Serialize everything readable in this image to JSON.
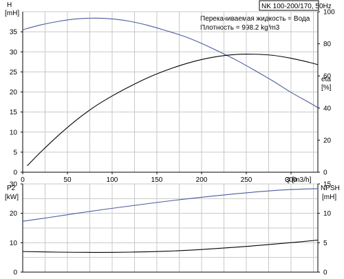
{
  "colors": {
    "background": "#ffffff",
    "grid": "#c8c8c8",
    "axis": "#000000",
    "head_curve": "#4a5aa0",
    "eta_curve": "#000000",
    "p2_curve": "#4a5aa0",
    "npsh_curve": "#000000"
  },
  "header": {
    "model": "NK 100-200/170, 50Hz",
    "fluid_line": "Перекачиваемая жидкость = Вода",
    "density_line": "Плотность = 998.2 kg/m3"
  },
  "chart_data": [
    {
      "type": "line",
      "x_axis": {
        "label": "Q [m3/h]",
        "range": [
          0,
          330
        ],
        "ticks": [
          0,
          50,
          100,
          150,
          200,
          250,
          300
        ]
      },
      "y_left": {
        "label_top": "H",
        "label_unit": "[mH]",
        "range": [
          0,
          40
        ],
        "ticks": [
          0,
          5,
          10,
          15,
          20,
          25,
          30,
          35
        ]
      },
      "y_right": {
        "label_top": "eta",
        "label_unit": "[%]",
        "range": [
          0,
          100
        ],
        "ticks": [
          0,
          20,
          40,
          60,
          80,
          100
        ]
      },
      "grid": true,
      "series": [
        {
          "key": "head",
          "axis": "left",
          "points": [
            [
              0,
              35.5
            ],
            [
              20,
              36.7
            ],
            [
              40,
              37.6
            ],
            [
              60,
              38.2
            ],
            [
              80,
              38.4
            ],
            [
              100,
              38.2
            ],
            [
              120,
              37.6
            ],
            [
              140,
              36.6
            ],
            [
              160,
              35.3
            ],
            [
              180,
              33.9
            ],
            [
              200,
              32.1
            ],
            [
              220,
              30.0
            ],
            [
              240,
              27.8
            ],
            [
              260,
              25.3
            ],
            [
              280,
              22.7
            ],
            [
              300,
              19.9
            ],
            [
              320,
              17.4
            ],
            [
              330,
              16.1
            ]
          ]
        },
        {
          "key": "eta",
          "axis": "right",
          "points": [
            [
              5,
              4.0
            ],
            [
              20,
              12.5
            ],
            [
              40,
              23.0
            ],
            [
              60,
              32.5
            ],
            [
              80,
              40.7
            ],
            [
              100,
              47.5
            ],
            [
              120,
              53.5
            ],
            [
              140,
              58.9
            ],
            [
              160,
              63.4
            ],
            [
              180,
              67.2
            ],
            [
              200,
              70.2
            ],
            [
              220,
              72.3
            ],
            [
              240,
              73.4
            ],
            [
              260,
              73.5
            ],
            [
              280,
              72.8
            ],
            [
              300,
              71.0
            ],
            [
              320,
              68.5
            ],
            [
              330,
              67.0
            ]
          ]
        }
      ]
    },
    {
      "type": "line",
      "x_axis": {
        "range": [
          0,
          330
        ]
      },
      "y_left": {
        "label_top": "P2",
        "label_unit": "[kW]",
        "range": [
          0,
          30
        ],
        "ticks": [
          0,
          10,
          20,
          30
        ]
      },
      "y_right": {
        "label_top": "NPSH",
        "label_unit": "[mH]",
        "range": [
          0,
          15
        ],
        "ticks": [
          0,
          5,
          10,
          15
        ]
      },
      "grid": true,
      "series": [
        {
          "key": "p2",
          "axis": "left",
          "points": [
            [
              0,
              17.3
            ],
            [
              30,
              18.6
            ],
            [
              60,
              20.0
            ],
            [
              90,
              21.3
            ],
            [
              120,
              22.5
            ],
            [
              150,
              23.7
            ],
            [
              180,
              24.8
            ],
            [
              210,
              25.8
            ],
            [
              240,
              26.7
            ],
            [
              270,
              27.5
            ],
            [
              300,
              28.1
            ],
            [
              330,
              28.4
            ]
          ]
        },
        {
          "key": "npsh",
          "axis": "right",
          "points": [
            [
              0,
              3.5
            ],
            [
              40,
              3.4
            ],
            [
              80,
              3.35
            ],
            [
              120,
              3.4
            ],
            [
              160,
              3.55
            ],
            [
              200,
              3.85
            ],
            [
              240,
              4.25
            ],
            [
              280,
              4.75
            ],
            [
              310,
              5.15
            ],
            [
              330,
              5.45
            ]
          ]
        }
      ]
    }
  ]
}
